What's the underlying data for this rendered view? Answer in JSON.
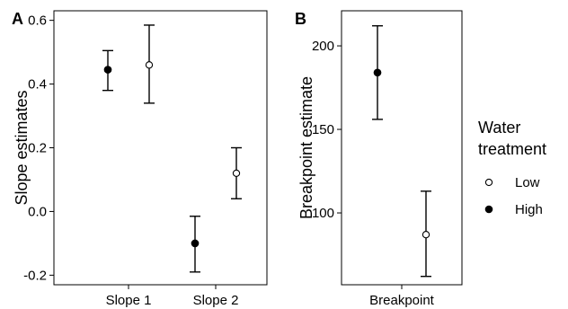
{
  "legend": {
    "title_line1": "Water",
    "title_line2": "treatment",
    "entries": [
      {
        "label": "Low",
        "marker": "open-circle"
      },
      {
        "label": "High",
        "marker": "filled-circle"
      }
    ]
  },
  "chart_data": [
    {
      "panel": "A",
      "type": "scatter",
      "subtype": "point-with-error-bars",
      "xlabel": "",
      "ylabel": "Slope estimates",
      "categories": [
        "Slope 1",
        "Slope 2"
      ],
      "ylim": [
        -0.23,
        0.63
      ],
      "yticks": [
        "-0.2",
        "0.0",
        "0.2",
        "0.4",
        "0.6"
      ],
      "grid": false,
      "series": [
        {
          "name": "High",
          "marker": "filled-circle",
          "points": [
            {
              "category": "Slope 1",
              "y": 0.445,
              "lower": 0.38,
              "upper": 0.505
            },
            {
              "category": "Slope 2",
              "y": -0.1,
              "lower": -0.19,
              "upper": -0.015
            }
          ]
        },
        {
          "name": "Low",
          "marker": "open-circle",
          "points": [
            {
              "category": "Slope 1",
              "y": 0.46,
              "lower": 0.34,
              "upper": 0.585
            },
            {
              "category": "Slope 2",
              "y": 0.12,
              "lower": 0.04,
              "upper": 0.2
            }
          ]
        }
      ]
    },
    {
      "panel": "B",
      "type": "scatter",
      "subtype": "point-with-error-bars",
      "xlabel": "",
      "ylabel": "Breakpoint estimate",
      "categories": [
        "Breakpoint"
      ],
      "ylim": [
        57,
        221
      ],
      "yticks": [
        "100",
        "150",
        "200"
      ],
      "grid": false,
      "series": [
        {
          "name": "High",
          "marker": "filled-circle",
          "points": [
            {
              "category": "Breakpoint",
              "y": 184,
              "lower": 156,
              "upper": 212
            }
          ]
        },
        {
          "name": "Low",
          "marker": "open-circle",
          "points": [
            {
              "category": "Breakpoint",
              "y": 87,
              "lower": 62,
              "upper": 113
            }
          ]
        }
      ]
    }
  ]
}
